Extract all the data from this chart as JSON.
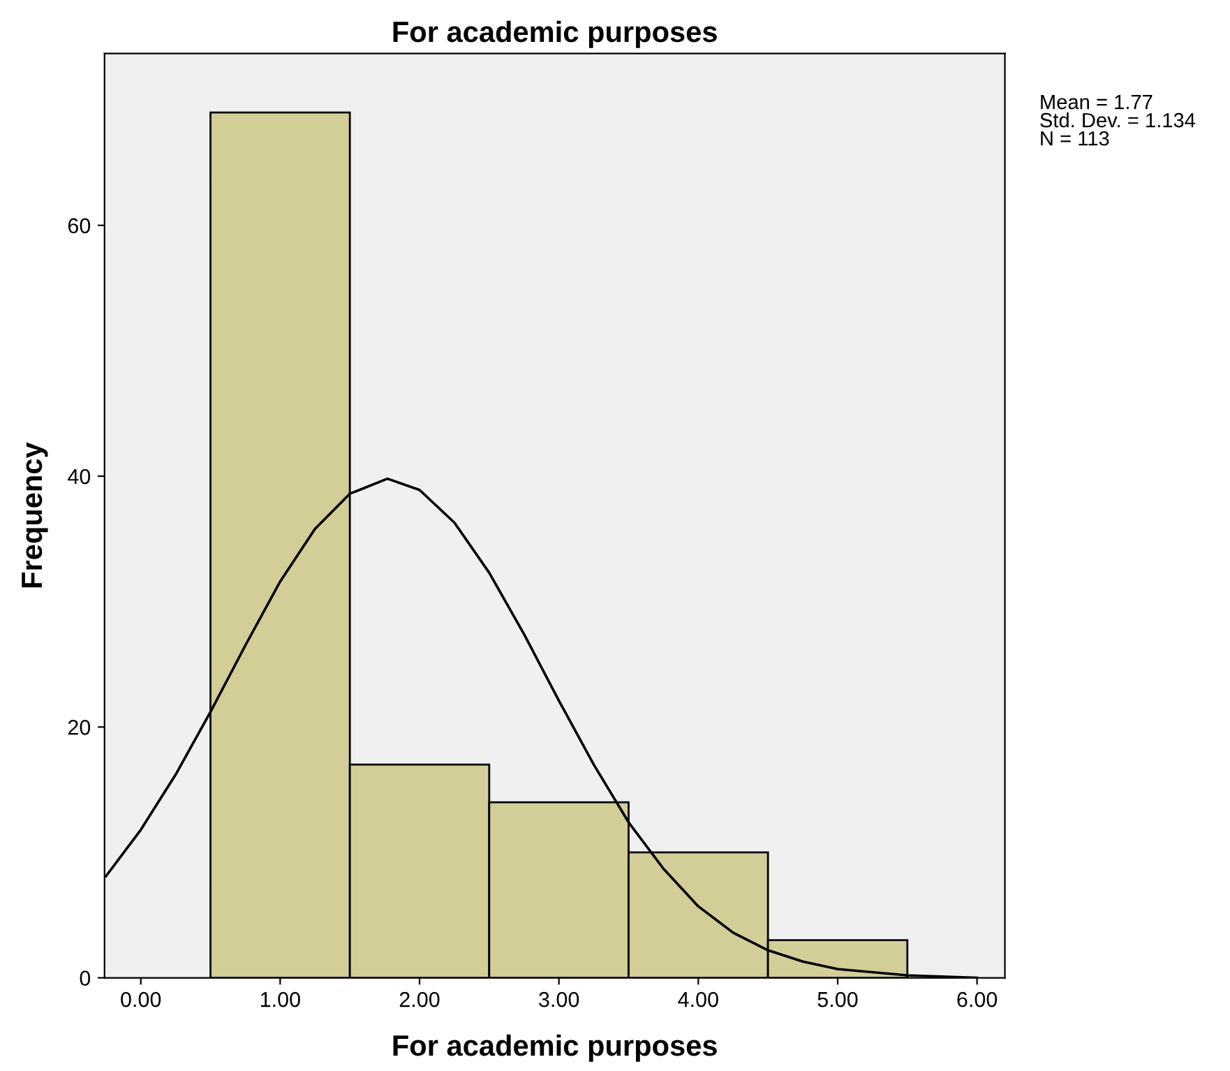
{
  "chart_data": {
    "type": "histogram",
    "title": "For academic purposes",
    "xlabel": "For academic purposes",
    "ylabel": "Frequency",
    "bins": [
      0.5,
      1.5,
      2.5,
      3.5,
      4.5,
      5.5
    ],
    "values": [
      69,
      17,
      14,
      10,
      3
    ],
    "color": "#d3ce97",
    "series": [
      {
        "type": "line",
        "color": "#000000",
        "x": [
          -0.25,
          0,
          0.25,
          0.5,
          0.75,
          1.0,
          1.25,
          1.5,
          1.77,
          2.0,
          2.25,
          2.5,
          2.75,
          3.0,
          3.25,
          3.5,
          3.75,
          4.0,
          4.25,
          4.5,
          4.75,
          5.0,
          5.5,
          6.0
        ],
        "values": [
          8.1,
          11.8,
          16.2,
          21.2,
          26.5,
          31.6,
          35.8,
          38.6,
          39.8,
          38.9,
          36.3,
          32.3,
          27.4,
          22.1,
          17.0,
          12.4,
          8.7,
          5.7,
          3.6,
          2.2,
          1.3,
          0.7,
          0.2,
          0
        ]
      }
    ],
    "xlim": [
      -0.26,
      6.2
    ],
    "ylim": [
      0,
      73.7
    ],
    "xticks": [
      {
        "value": 0,
        "label": "0.00"
      },
      {
        "value": 1,
        "label": "1.00"
      },
      {
        "value": 2,
        "label": "2.00"
      },
      {
        "value": 3,
        "label": "3.00"
      },
      {
        "value": 4,
        "label": "4.00"
      },
      {
        "value": 5,
        "label": "5.00"
      },
      {
        "value": 6,
        "label": "6.00"
      }
    ],
    "yticks": [
      0,
      20,
      40,
      60
    ],
    "annotations": [
      "Mean = 1.77",
      "Std. Dev. = 1.134",
      "N = 113"
    ]
  }
}
